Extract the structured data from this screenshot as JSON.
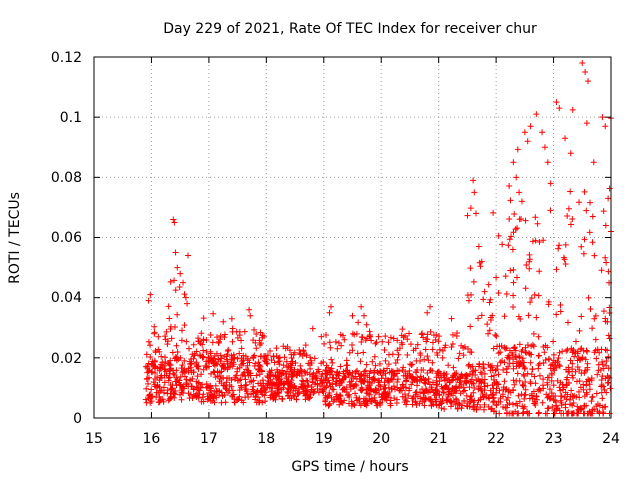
{
  "chart_data": {
    "type": "scatter",
    "title": "Day 229 of 2021, Rate Of TEC Index for receiver chur",
    "xlabel": "GPS time / hours",
    "ylabel": "ROTI / TECUs",
    "xlim": [
      15,
      24
    ],
    "ylim": [
      0,
      0.12
    ],
    "x_ticks": [
      "15",
      "16",
      "17",
      "18",
      "19",
      "20",
      "21",
      "22",
      "23",
      "24"
    ],
    "y_ticks": [
      "0",
      "0.02",
      "0.04",
      "0.06",
      "0.08",
      "0.1",
      "0.12"
    ],
    "grid": true,
    "marker": "+",
    "color": "#ff0000",
    "series": [
      {
        "name": "ROTI",
        "envelope": [
          {
            "from": 15.9,
            "to": 16.3,
            "base": 0.012,
            "spread": 0.014,
            "peak": 0.041
          },
          {
            "from": 16.3,
            "to": 16.7,
            "base": 0.013,
            "spread": 0.014,
            "peak": 0.065
          },
          {
            "from": 16.7,
            "to": 18.0,
            "base": 0.013,
            "spread": 0.016,
            "peak": 0.035
          },
          {
            "from": 18.0,
            "to": 19.0,
            "base": 0.011,
            "spread": 0.01,
            "peak": 0.03
          },
          {
            "from": 19.0,
            "to": 21.0,
            "base": 0.01,
            "spread": 0.012,
            "peak": 0.037
          },
          {
            "from": 21.0,
            "to": 21.5,
            "base": 0.009,
            "spread": 0.012,
            "peak": 0.037
          },
          {
            "from": 21.5,
            "to": 22.0,
            "base": 0.01,
            "spread": 0.016,
            "peak": 0.079
          },
          {
            "from": 22.0,
            "to": 23.0,
            "base": 0.012,
            "spread": 0.025,
            "peak": 0.101
          },
          {
            "from": 23.0,
            "to": 24.0,
            "base": 0.011,
            "spread": 0.025,
            "peak": 0.118
          }
        ],
        "points": [
          [
            15.95,
            0.039
          ],
          [
            15.98,
            0.041
          ],
          [
            16.05,
            0.028
          ],
          [
            16.12,
            0.027
          ],
          [
            16.38,
            0.066
          ],
          [
            16.4,
            0.065
          ],
          [
            16.42,
            0.055
          ],
          [
            16.45,
            0.05
          ],
          [
            16.5,
            0.048
          ],
          [
            16.55,
            0.045
          ],
          [
            16.6,
            0.04
          ],
          [
            16.62,
            0.038
          ],
          [
            17.25,
            0.032
          ],
          [
            17.4,
            0.033
          ],
          [
            17.7,
            0.036
          ],
          [
            17.72,
            0.034
          ],
          [
            19.1,
            0.035
          ],
          [
            19.5,
            0.034
          ],
          [
            19.65,
            0.037
          ],
          [
            19.7,
            0.034
          ],
          [
            20.8,
            0.035
          ],
          [
            20.85,
            0.037
          ],
          [
            21.6,
            0.079
          ],
          [
            21.62,
            0.075
          ],
          [
            21.65,
            0.068
          ],
          [
            21.7,
            0.057
          ],
          [
            21.75,
            0.052
          ],
          [
            21.8,
            0.042
          ],
          [
            22.3,
            0.085
          ],
          [
            22.35,
            0.08
          ],
          [
            22.4,
            0.075
          ],
          [
            22.45,
            0.072
          ],
          [
            22.5,
            0.095
          ],
          [
            22.55,
            0.092
          ],
          [
            22.6,
            0.097
          ],
          [
            22.7,
            0.101
          ],
          [
            22.8,
            0.095
          ],
          [
            22.85,
            0.09
          ],
          [
            22.9,
            0.085
          ],
          [
            22.95,
            0.078
          ],
          [
            23.05,
            0.105
          ],
          [
            23.1,
            0.103
          ],
          [
            23.2,
            0.093
          ],
          [
            23.3,
            0.088
          ],
          [
            23.5,
            0.118
          ],
          [
            23.55,
            0.115
          ],
          [
            23.6,
            0.112
          ],
          [
            23.58,
            0.098
          ],
          [
            23.7,
            0.085
          ],
          [
            23.85,
            0.1
          ],
          [
            23.9,
            0.097
          ],
          [
            23.95,
            0.073
          ],
          [
            24.0,
            0.062
          ]
        ]
      }
    ]
  }
}
